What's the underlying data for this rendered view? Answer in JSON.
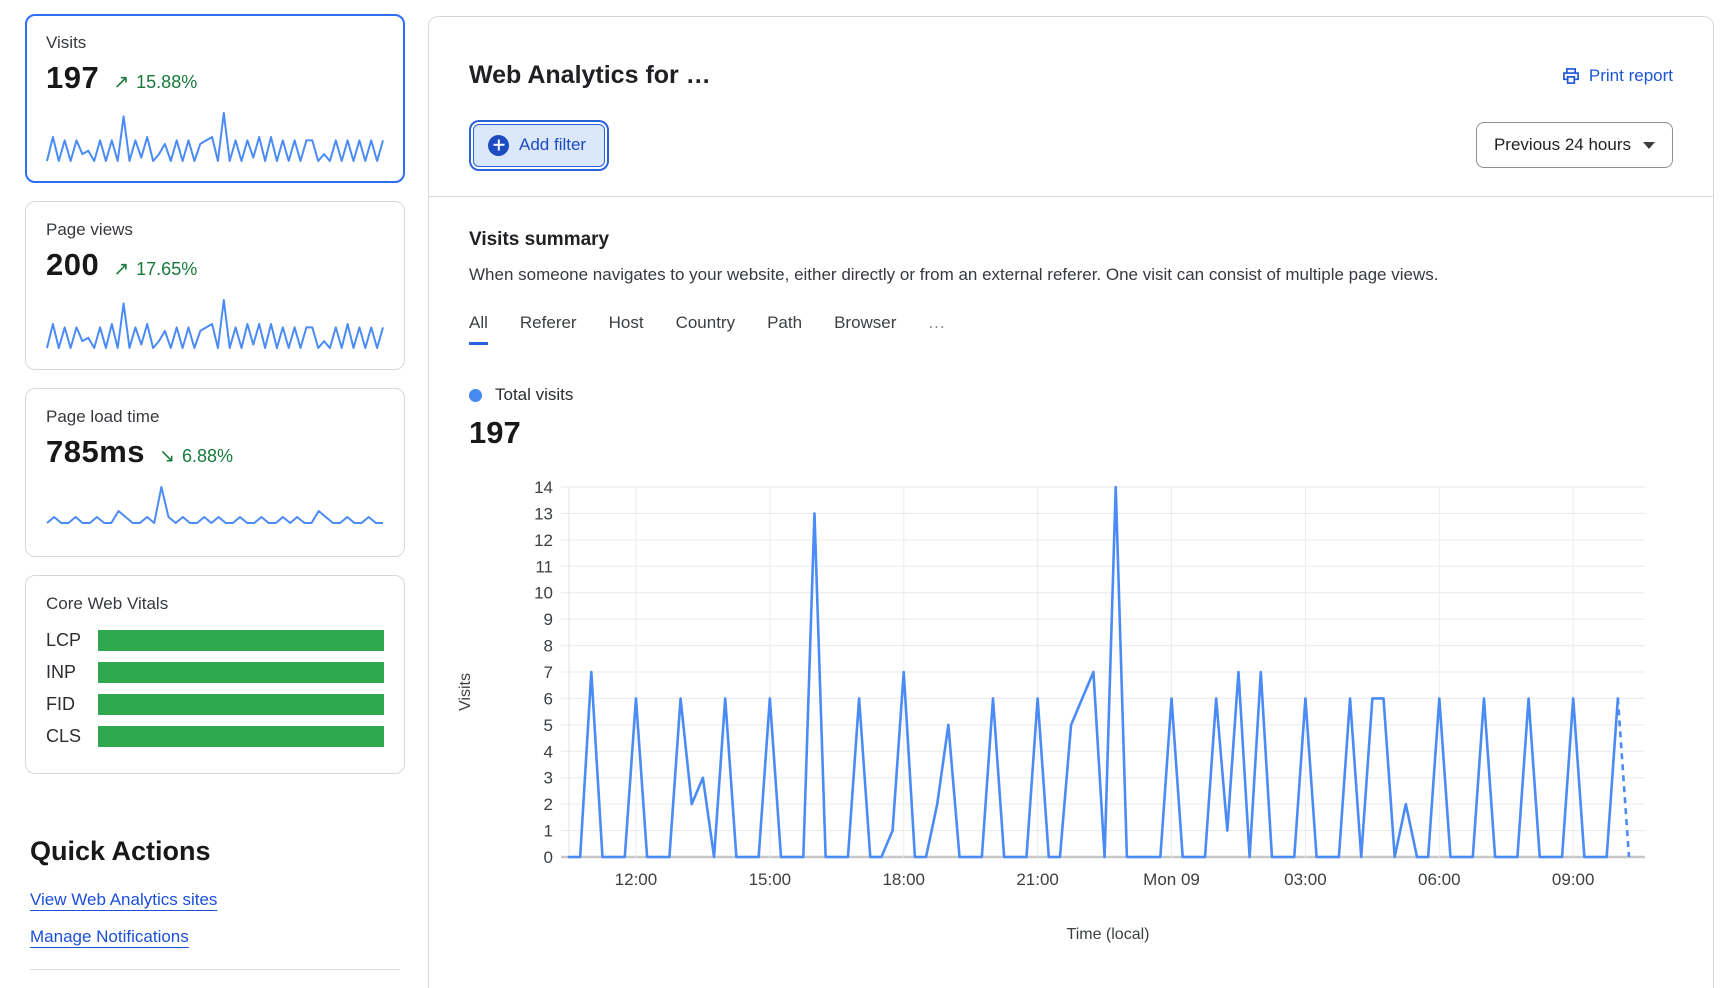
{
  "sidebar": {
    "cards": [
      {
        "title": "Visits",
        "value": "197",
        "arrow": "↗",
        "trend": "15.88%",
        "selected": true
      },
      {
        "title": "Page views",
        "value": "200",
        "arrow": "↗",
        "trend": "17.65%",
        "selected": false
      },
      {
        "title": "Page load time",
        "value": "785ms",
        "arrow": "↘",
        "trend": "6.88%",
        "selected": false
      }
    ],
    "core_web_vitals": {
      "title": "Core Web Vitals",
      "metrics": [
        "LCP",
        "INP",
        "FID",
        "CLS"
      ],
      "status_color": "#2fa84f"
    },
    "quick_actions": {
      "title": "Quick Actions",
      "links": [
        "View Web Analytics sites",
        "Manage Notifications"
      ]
    }
  },
  "header": {
    "title": "Web Analytics for …",
    "print_report": "Print report",
    "add_filter": "Add filter",
    "time_range": "Previous 24 hours"
  },
  "summary": {
    "title": "Visits summary",
    "description": "When someone navigates to your website, either directly or from an external referer. One visit can consist of multiple page views.",
    "tabs": [
      "All",
      "Referer",
      "Host",
      "Country",
      "Path",
      "Browser",
      "..."
    ],
    "active_tab": "All",
    "legend_label": "Total visits",
    "total": "197"
  },
  "colors": {
    "accent_blue": "#1b55d7",
    "line_blue": "#4b8bf5",
    "positive_green": "#187a3c",
    "bar_green": "#2fa84f",
    "selected_card_border": "#2d6ff2"
  },
  "chart_data": {
    "main": {
      "type": "line",
      "series_name": "Total visits",
      "total": 197,
      "x_unit": "15-minute buckets over previous 24 hours",
      "values": [
        0,
        0,
        7,
        0,
        0,
        0,
        6,
        0,
        0,
        0,
        6,
        2,
        3,
        0,
        6,
        0,
        0,
        0,
        6,
        0,
        0,
        0,
        13,
        0,
        0,
        0,
        6,
        0,
        0,
        1,
        7,
        0,
        0,
        2,
        5,
        0,
        0,
        0,
        6,
        0,
        0,
        0,
        6,
        0,
        0,
        5,
        6,
        7,
        0,
        14,
        0,
        0,
        0,
        0,
        6,
        0,
        0,
        0,
        6,
        1,
        7,
        0,
        7,
        0,
        0,
        0,
        6,
        0,
        0,
        0,
        6,
        0,
        6,
        6,
        0,
        2,
        0,
        0,
        6,
        0,
        0,
        0,
        6,
        0,
        0,
        0,
        6,
        0,
        0,
        0,
        6,
        0,
        0,
        0,
        6,
        0
      ],
      "x_tick_indices": [
        6,
        18,
        30,
        42,
        54,
        66,
        78,
        90
      ],
      "x_tick_labels": [
        "12:00",
        "15:00",
        "18:00",
        "21:00",
        "Mon 09",
        "03:00",
        "06:00",
        "09:00"
      ],
      "xlabel": "Time (local)",
      "ylabel": "Visits",
      "ylim": [
        0,
        14
      ],
      "y_tick_step": 1,
      "grid": true,
      "line_color": "#4b8bf5",
      "last_segment_dashed": true
    },
    "sparklines": {
      "visits": [
        0,
        7,
        0,
        6,
        0,
        6,
        2,
        3,
        0,
        6,
        0,
        6,
        0,
        13,
        0,
        6,
        1,
        7,
        0,
        2,
        5,
        0,
        6,
        0,
        6,
        0,
        5,
        6,
        7,
        0,
        14,
        0,
        6,
        0,
        6,
        1,
        7,
        0,
        7,
        0,
        6,
        0,
        6,
        0,
        6,
        6,
        0,
        2,
        0,
        6,
        0,
        6,
        0,
        6,
        0,
        6,
        0,
        6
      ],
      "page_views": [
        0,
        7,
        0,
        6,
        0,
        6,
        2,
        3,
        0,
        6,
        0,
        7,
        0,
        13,
        0,
        6,
        1,
        7,
        0,
        2,
        5,
        0,
        6,
        0,
        6,
        0,
        5,
        6,
        7,
        0,
        14,
        0,
        6,
        0,
        7,
        1,
        7,
        0,
        7,
        0,
        6,
        0,
        6,
        0,
        6,
        6,
        0,
        2,
        0,
        6,
        0,
        7,
        0,
        6,
        0,
        6,
        0,
        6
      ],
      "page_load_time": [
        2,
        3,
        2,
        2,
        3,
        2,
        2,
        3,
        2,
        2,
        4,
        3,
        2,
        2,
        3,
        2,
        8,
        3,
        2,
        3,
        2,
        2,
        3,
        2,
        3,
        2,
        2,
        3,
        2,
        2,
        3,
        2,
        2,
        3,
        2,
        3,
        2,
        2,
        4,
        3,
        2,
        2,
        3,
        2,
        2,
        3,
        2,
        2
      ]
    }
  }
}
